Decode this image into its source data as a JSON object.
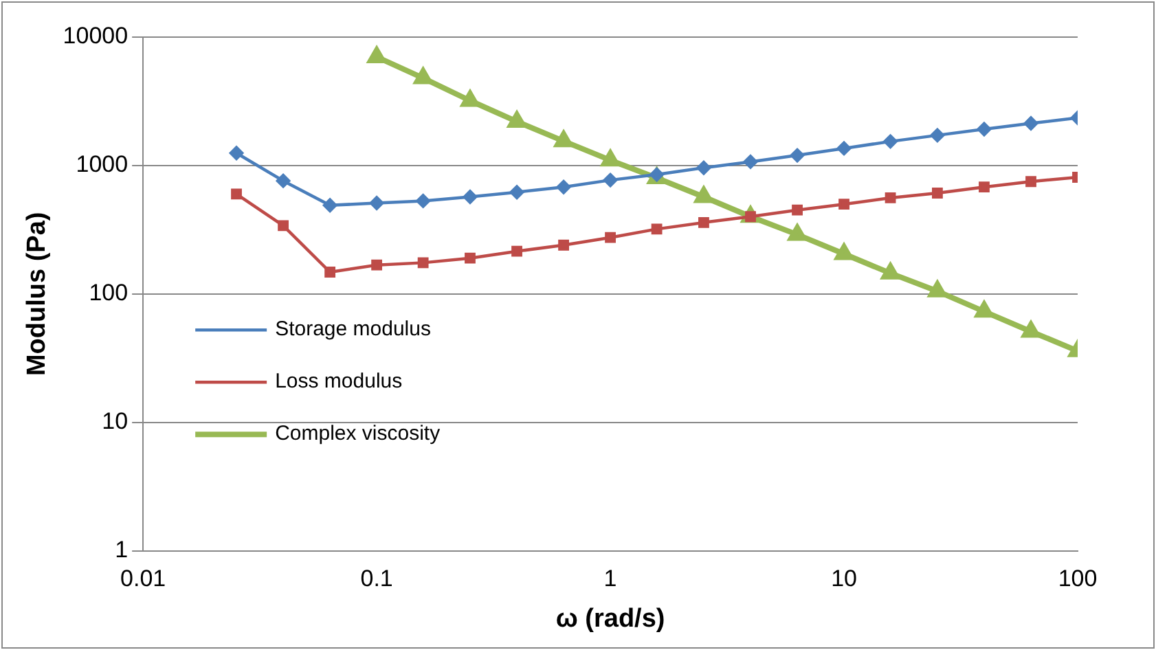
{
  "chart_data": {
    "type": "line",
    "xlabel": "ω (rad/s)",
    "ylabel": "Modulus (Pa)",
    "log": "xy",
    "xlim": [
      0.01,
      100
    ],
    "xticks": [
      {
        "value": 0.01,
        "label": "0.01"
      },
      {
        "value": 0.1,
        "label": "0.1"
      },
      1,
      10,
      100
    ],
    "ylim": [
      1,
      10000
    ],
    "yticks": [
      1,
      10,
      100,
      1000,
      10000
    ],
    "grid": "y",
    "legend": "left",
    "x": [
      0.0251,
      0.0398,
      0.0631,
      0.1,
      0.158,
      0.251,
      0.398,
      0.631,
      1,
      1.58,
      2.51,
      3.98,
      6.31,
      10,
      15.8,
      25.1,
      39.8,
      63.1,
      100
    ],
    "series": [
      {
        "name": "Storage modulus",
        "color": "#4a7ebb",
        "marker": "diamond",
        "values": [
          1250,
          760,
          490,
          510,
          530,
          570,
          620,
          680,
          770,
          850,
          960,
          1070,
          1200,
          1360,
          1540,
          1720,
          1920,
          2130,
          2350
        ]
      },
      {
        "name": "Loss modulus",
        "color": "#be4b48",
        "marker": "square",
        "values": [
          600,
          340,
          148,
          168,
          175,
          190,
          215,
          240,
          275,
          320,
          360,
          400,
          450,
          500,
          560,
          610,
          680,
          750,
          810
        ]
      },
      {
        "name": "Complex viscosity",
        "color": "#98b954",
        "marker": "triangle",
        "values": [
          null,
          null,
          null,
          7000,
          4800,
          3200,
          2200,
          1550,
          1100,
          800,
          570,
          400,
          290,
          205,
          145,
          105,
          73,
          51,
          36
        ]
      }
    ]
  }
}
